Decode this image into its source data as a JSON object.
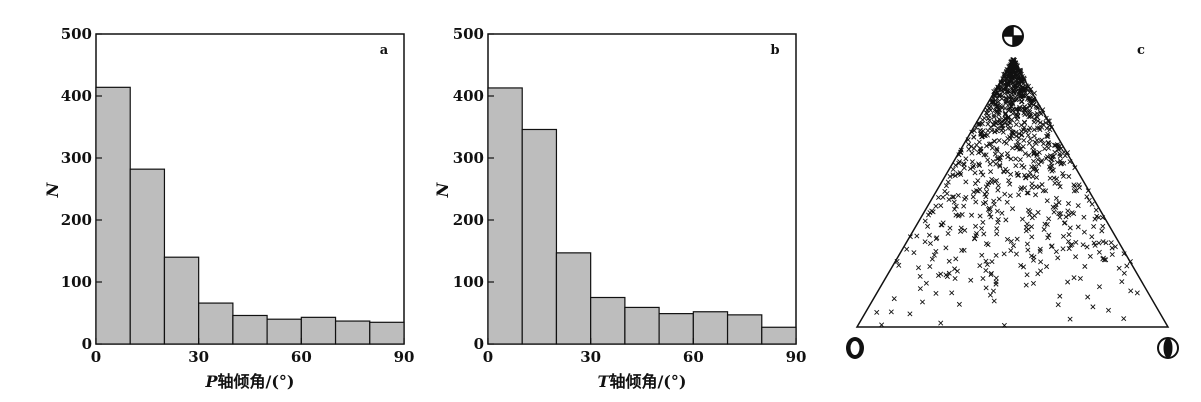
{
  "chart_data": [
    {
      "type": "bar",
      "panel_label": "a",
      "xlabel_var": "P",
      "xlabel_rest": "轴倾角/(°)",
      "ylabel": "N",
      "bin_edges": [
        0,
        10,
        20,
        30,
        40,
        50,
        60,
        70,
        80,
        90
      ],
      "values": [
        414,
        282,
        140,
        66,
        46,
        40,
        43,
        37,
        35
      ],
      "xlim": [
        0,
        90
      ],
      "ylim": [
        0,
        500
      ],
      "xticks": [
        "0",
        "30",
        "60",
        "90"
      ],
      "yticks": [
        "0",
        "100",
        "200",
        "300",
        "400",
        "500"
      ],
      "bar_color": "#bdbdbd"
    },
    {
      "type": "bar",
      "panel_label": "b",
      "xlabel_var": "T",
      "xlabel_rest": "轴倾角/(°)",
      "ylabel": "N",
      "bin_edges": [
        0,
        10,
        20,
        30,
        40,
        50,
        60,
        70,
        80,
        90
      ],
      "values": [
        413,
        346,
        147,
        75,
        59,
        49,
        52,
        47,
        27
      ],
      "xlim": [
        0,
        90
      ],
      "ylim": [
        0,
        500
      ],
      "xticks": [
        "0",
        "30",
        "60",
        "90"
      ],
      "yticks": [
        "0",
        "100",
        "200",
        "300",
        "400",
        "500"
      ],
      "bar_color": "#bdbdbd"
    },
    {
      "type": "scatter",
      "subtype": "ternary",
      "panel_label": "c",
      "marker": "x",
      "corner_symbols": [
        "strike-slip beachball (top)",
        "thrust beachball (bottom-left)",
        "normal beachball (bottom-right)"
      ]
    }
  ]
}
